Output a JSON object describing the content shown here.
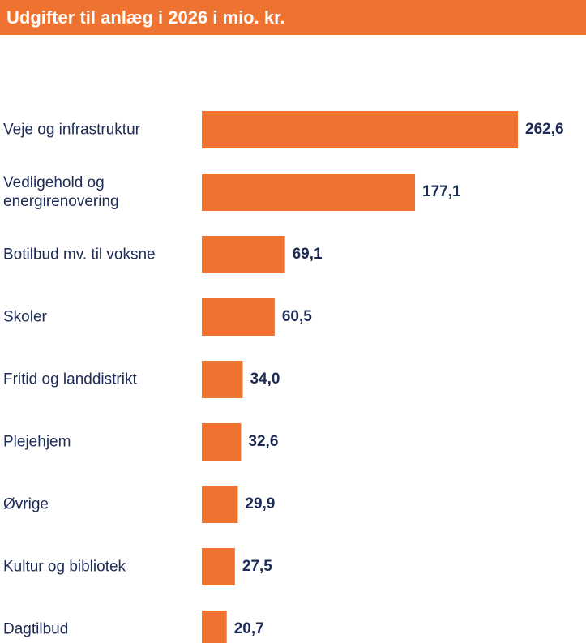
{
  "chart_data": {
    "type": "bar",
    "orientation": "horizontal",
    "title": "Udgifter til anlæg i 2026 i mio. kr.",
    "categories": [
      "Veje og infrastruktur",
      "Vedligehold og energirenovering",
      "Botilbud mv. til voksne",
      "Skoler",
      "Fritid og landdistrikt",
      "Plejehjem",
      "Øvrige",
      "Kultur og bibliotek",
      "Dagtilbud"
    ],
    "values": [
      262.6,
      177.1,
      69.1,
      60.5,
      34.0,
      32.6,
      29.9,
      27.5,
      20.7
    ],
    "value_labels": [
      "262,6",
      "177,1",
      "69,1",
      "60,5",
      "34,0",
      "32,6",
      "29,9",
      "27,5",
      "20,7"
    ],
    "color": "#ee7330"
  }
}
